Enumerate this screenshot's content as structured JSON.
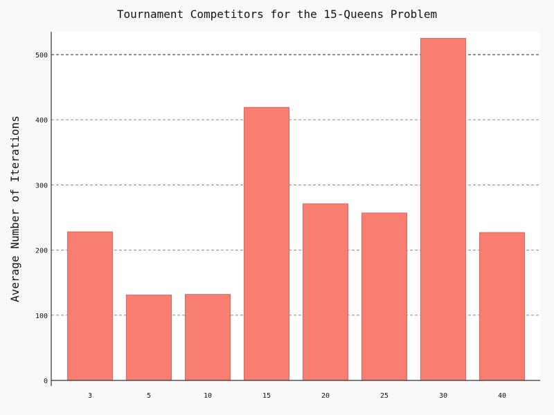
{
  "chart_data": {
    "type": "bar",
    "title": "Tournament Competitors for the 15-Queens Problem",
    "xlabel": "",
    "ylabel": "Average Number of Iterations",
    "categories": [
      "3",
      "5",
      "10",
      "15",
      "20",
      "25",
      "30",
      "40"
    ],
    "values": [
      228,
      131,
      132,
      419,
      271,
      257,
      525,
      227
    ],
    "yticks": [
      0,
      100,
      200,
      300,
      400,
      500
    ],
    "ytick_labels": [
      "0",
      "100",
      "200",
      "300",
      "400",
      "500"
    ],
    "ylim": [
      0,
      535
    ],
    "grid": "horizontal-dashed",
    "bar_color": "#f87e72",
    "bar_edge_color": "#e0645a",
    "background_color": "#f9f9f9",
    "plot_background_color": "#ffffff"
  }
}
